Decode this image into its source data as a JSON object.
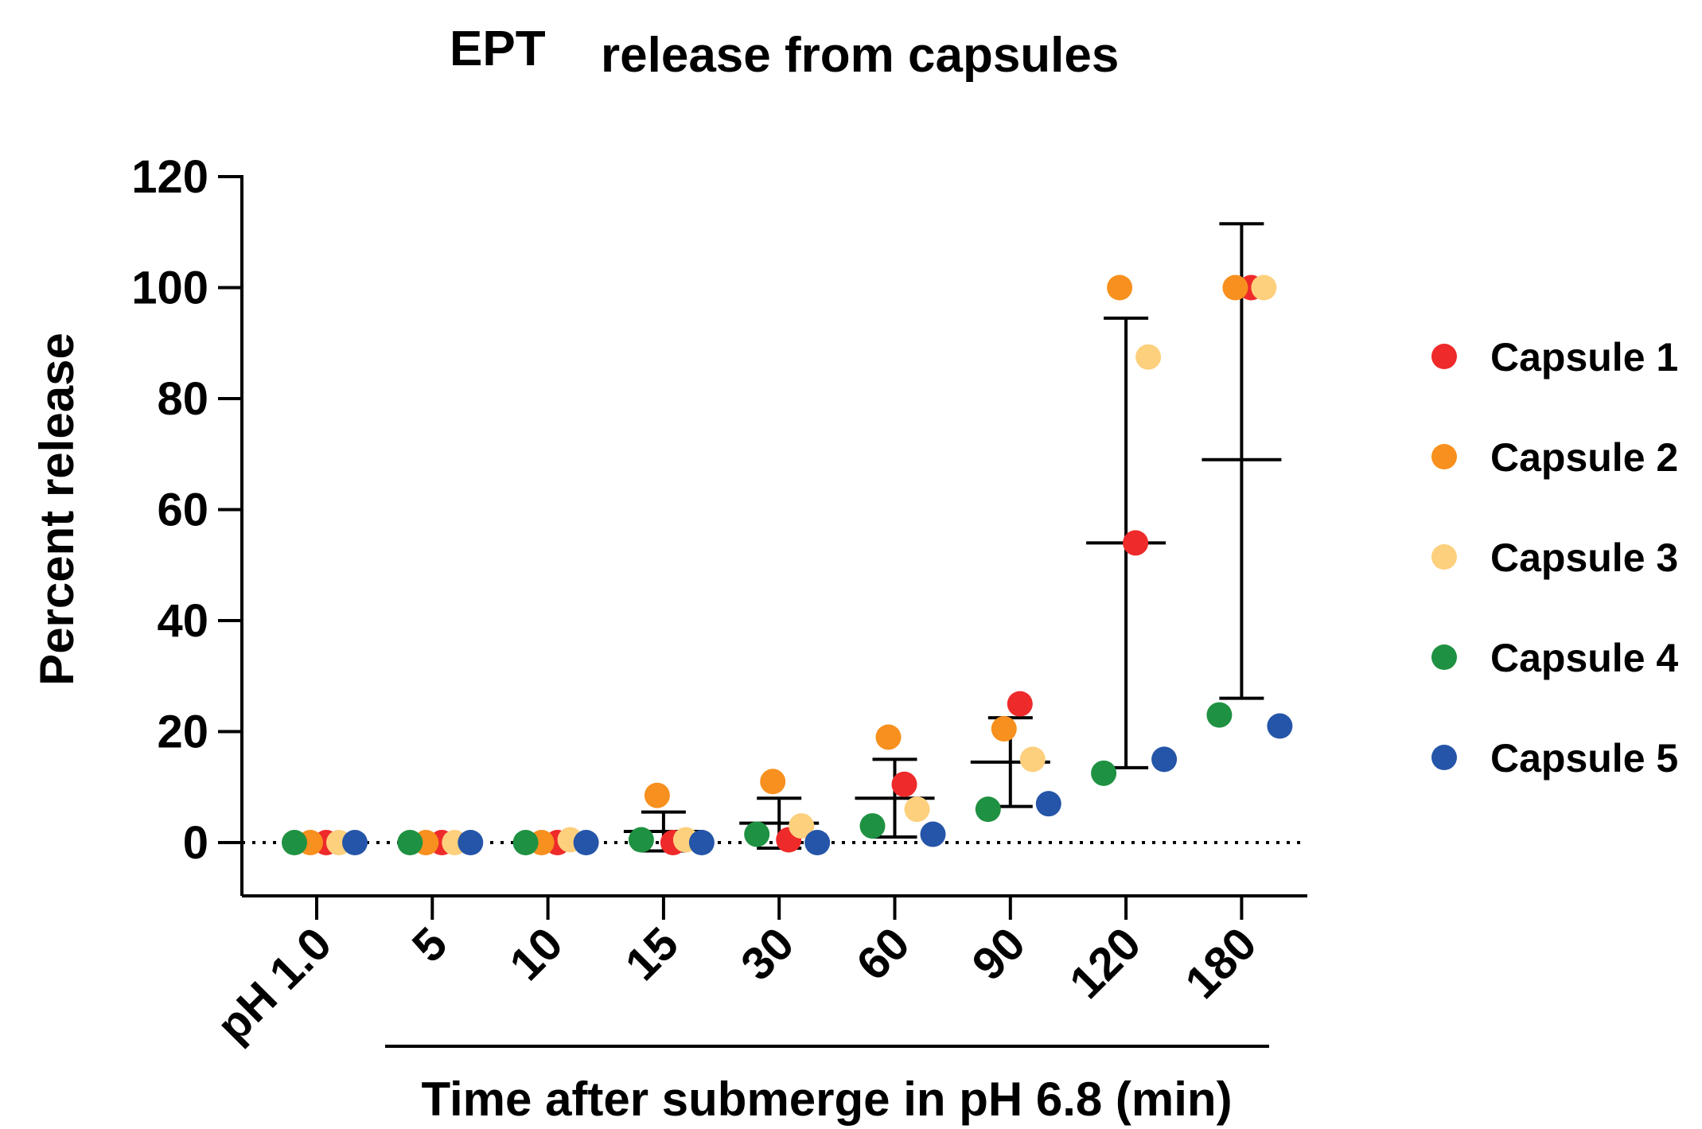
{
  "chart_data": {
    "type": "scatter",
    "title_part1": "EPT",
    "title_part2": "release from capsules",
    "ylabel": "Percent release",
    "xlabel": "Time after submerge in pH 6.8 (min)",
    "ylim": [
      -10,
      120
    ],
    "yticks": [
      0,
      20,
      40,
      60,
      80,
      100,
      120
    ],
    "categories": [
      "pH 1.0",
      "5",
      "10",
      "15",
      "30",
      "60",
      "90",
      "120",
      "180"
    ],
    "series": [
      {
        "name": "Capsule 1",
        "color": "#ee2a2a",
        "values": [
          0,
          0,
          0,
          0,
          0.5,
          10.5,
          25,
          54,
          100
        ]
      },
      {
        "name": "Capsule 2",
        "color": "#f7901e",
        "values": [
          0,
          0,
          0,
          8.5,
          11,
          19,
          20.5,
          100,
          100
        ]
      },
      {
        "name": "Capsule 3",
        "color": "#fdd07e",
        "values": [
          0,
          0,
          0.5,
          0.5,
          3,
          6,
          15,
          87.5,
          100
        ]
      },
      {
        "name": "Capsule 4",
        "color": "#1f9142",
        "values": [
          0,
          0,
          0,
          0.5,
          1.5,
          3,
          6,
          12.5,
          23
        ]
      },
      {
        "name": "Capsule 5",
        "color": "#2555a8",
        "values": [
          0,
          0,
          0,
          0,
          0,
          1.5,
          7,
          15,
          21
        ]
      }
    ],
    "summary": {
      "mean": [
        0,
        0,
        0,
        2,
        3.5,
        8,
        14.5,
        54,
        69
      ],
      "sd_low": [
        0,
        0,
        0,
        -1.5,
        -1,
        1,
        6.5,
        13.5,
        26
      ],
      "sd_high": [
        0,
        0,
        0,
        5.5,
        8,
        15,
        22.5,
        94.5,
        111.5
      ]
    },
    "baseline_dotted": 0,
    "legend_position": "right"
  }
}
